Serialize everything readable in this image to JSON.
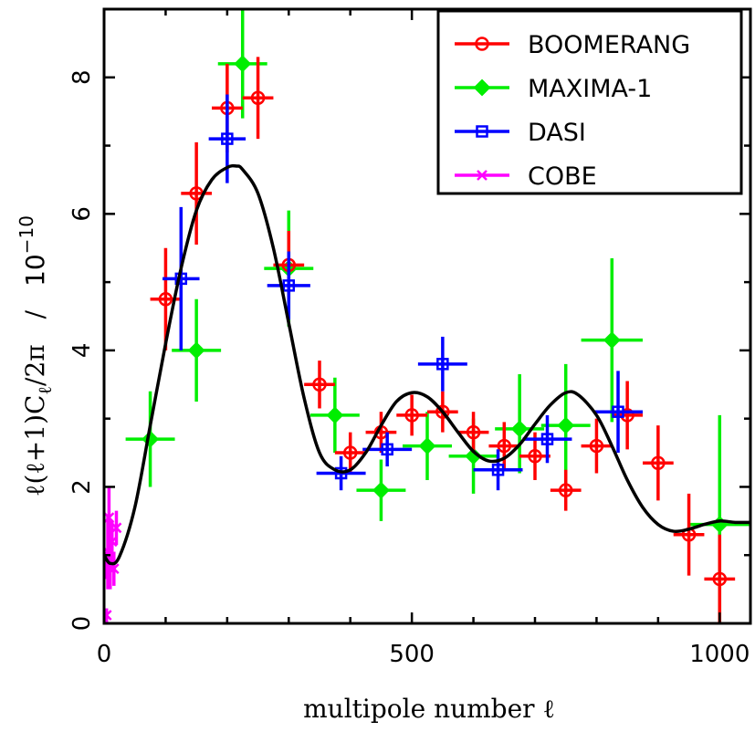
{
  "chart_data": {
    "type": "scatter",
    "xlabel": "multipole number ℓ",
    "ylabel": "ℓ(ℓ+1)C",
    "ylabel_sub": "ℓ",
    "ylabel_tail": "/2π",
    "ylabel_slash": "/",
    "ylabel_scale": "10",
    "ylabel_scale_exp": "−10",
    "xlim": [
      0,
      1050
    ],
    "ylim": [
      0,
      9
    ],
    "xticks": [
      0,
      500,
      1000
    ],
    "xtick_labels": [
      "0",
      "500",
      "1000"
    ],
    "yticks": [
      0,
      2,
      4,
      6,
      8
    ],
    "ytick_labels": [
      "0",
      "2",
      "4",
      "6",
      "8"
    ],
    "legend_position": "top-right",
    "series": [
      {
        "name": "BOOMERANG",
        "color": "#ff0000",
        "marker": "circle",
        "points": [
          {
            "x": 100,
            "y": 4.75,
            "xerr": 25,
            "yerr_lo": 0.75,
            "yerr_hi": 0.75
          },
          {
            "x": 150,
            "y": 6.3,
            "xerr": 25,
            "yerr_lo": 0.75,
            "yerr_hi": 0.75
          },
          {
            "x": 200,
            "y": 7.55,
            "xerr": 25,
            "yerr_lo": 0.65,
            "yerr_hi": 0.65
          },
          {
            "x": 250,
            "y": 7.7,
            "xerr": 25,
            "yerr_lo": 0.6,
            "yerr_hi": 0.6
          },
          {
            "x": 300,
            "y": 5.25,
            "xerr": 25,
            "yerr_lo": 0.5,
            "yerr_hi": 0.5
          },
          {
            "x": 350,
            "y": 3.5,
            "xerr": 25,
            "yerr_lo": 0.35,
            "yerr_hi": 0.35
          },
          {
            "x": 400,
            "y": 2.5,
            "xerr": 25,
            "yerr_lo": 0.3,
            "yerr_hi": 0.3
          },
          {
            "x": 450,
            "y": 2.8,
            "xerr": 25,
            "yerr_lo": 0.3,
            "yerr_hi": 0.3
          },
          {
            "x": 500,
            "y": 3.05,
            "xerr": 25,
            "yerr_lo": 0.3,
            "yerr_hi": 0.3
          },
          {
            "x": 550,
            "y": 3.1,
            "xerr": 25,
            "yerr_lo": 0.3,
            "yerr_hi": 0.3
          },
          {
            "x": 600,
            "y": 2.8,
            "xerr": 25,
            "yerr_lo": 0.3,
            "yerr_hi": 0.3
          },
          {
            "x": 650,
            "y": 2.6,
            "xerr": 25,
            "yerr_lo": 0.35,
            "yerr_hi": 0.35
          },
          {
            "x": 700,
            "y": 2.45,
            "xerr": 25,
            "yerr_lo": 0.35,
            "yerr_hi": 0.35
          },
          {
            "x": 750,
            "y": 1.95,
            "xerr": 25,
            "yerr_lo": 0.3,
            "yerr_hi": 0.3
          },
          {
            "x": 800,
            "y": 2.6,
            "xerr": 25,
            "yerr_lo": 0.4,
            "yerr_hi": 0.4
          },
          {
            "x": 850,
            "y": 3.05,
            "xerr": 25,
            "yerr_lo": 0.5,
            "yerr_hi": 0.5
          },
          {
            "x": 900,
            "y": 2.35,
            "xerr": 25,
            "yerr_lo": 0.55,
            "yerr_hi": 0.55
          },
          {
            "x": 950,
            "y": 1.3,
            "xerr": 25,
            "yerr_lo": 0.6,
            "yerr_hi": 0.6
          },
          {
            "x": 1000,
            "y": 0.65,
            "xerr": 25,
            "yerr_lo": 0.65,
            "yerr_hi": 0.65
          }
        ]
      },
      {
        "name": "MAXIMA-1",
        "color": "#00ee00",
        "marker": "diamond",
        "points": [
          {
            "x": 75,
            "y": 2.7,
            "xerr": 40,
            "yerr_lo": 0.7,
            "yerr_hi": 0.7
          },
          {
            "x": 150,
            "y": 4.0,
            "xerr": 40,
            "yerr_lo": 0.75,
            "yerr_hi": 0.75
          },
          {
            "x": 225,
            "y": 8.2,
            "xerr": 40,
            "yerr_lo": 0.8,
            "yerr_hi": 0.8
          },
          {
            "x": 300,
            "y": 5.2,
            "xerr": 40,
            "yerr_lo": 0.85,
            "yerr_hi": 0.85
          },
          {
            "x": 375,
            "y": 3.05,
            "xerr": 40,
            "yerr_lo": 0.55,
            "yerr_hi": 0.55
          },
          {
            "x": 450,
            "y": 1.95,
            "xerr": 40,
            "yerr_lo": 0.45,
            "yerr_hi": 0.45
          },
          {
            "x": 525,
            "y": 2.6,
            "xerr": 40,
            "yerr_lo": 0.5,
            "yerr_hi": 0.5
          },
          {
            "x": 600,
            "y": 2.45,
            "xerr": 40,
            "yerr_lo": 0.55,
            "yerr_hi": 0.55
          },
          {
            "x": 675,
            "y": 2.85,
            "xerr": 40,
            "yerr_lo": 0.65,
            "yerr_hi": 0.8
          },
          {
            "x": 750,
            "y": 2.9,
            "xerr": 40,
            "yerr_lo": 0.9,
            "yerr_hi": 0.9
          },
          {
            "x": 825,
            "y": 4.15,
            "xerr": 50,
            "yerr_lo": 1.2,
            "yerr_hi": 1.2
          },
          {
            "x": 1000,
            "y": 1.45,
            "xerr": 50,
            "yerr_lo": 1.6,
            "yerr_hi": 1.6
          }
        ]
      },
      {
        "name": "DASI",
        "color": "#0000ff",
        "marker": "square",
        "points": [
          {
            "x": 125,
            "y": 5.05,
            "xerr": 30,
            "yerr_lo": 1.05,
            "yerr_hi": 1.05
          },
          {
            "x": 200,
            "y": 7.1,
            "xerr": 30,
            "yerr_lo": 0.65,
            "yerr_hi": 0.65
          },
          {
            "x": 300,
            "y": 4.95,
            "xerr": 35,
            "yerr_lo": 0.5,
            "yerr_hi": 0.5
          },
          {
            "x": 385,
            "y": 2.2,
            "xerr": 40,
            "yerr_lo": 0.25,
            "yerr_hi": 0.25
          },
          {
            "x": 460,
            "y": 2.55,
            "xerr": 40,
            "yerr_lo": 0.25,
            "yerr_hi": 0.25
          },
          {
            "x": 550,
            "y": 3.8,
            "xerr": 40,
            "yerr_lo": 0.4,
            "yerr_hi": 0.4
          },
          {
            "x": 640,
            "y": 2.25,
            "xerr": 40,
            "yerr_lo": 0.3,
            "yerr_hi": 0.3
          },
          {
            "x": 720,
            "y": 2.7,
            "xerr": 40,
            "yerr_lo": 0.35,
            "yerr_hi": 0.35
          },
          {
            "x": 835,
            "y": 3.1,
            "xerr": 40,
            "yerr_lo": 0.6,
            "yerr_hi": 0.6
          }
        ]
      },
      {
        "name": "COBE",
        "color": "#ff00ff",
        "marker": "cross",
        "points": [
          {
            "x": 4,
            "y": 0.12,
            "xerr": 0,
            "yerr_lo": 0.1,
            "yerr_hi": 0.1
          },
          {
            "x": 6,
            "y": 1.05,
            "xerr": 1,
            "yerr_lo": 0.55,
            "yerr_hi": 0.55
          },
          {
            "x": 8,
            "y": 1.55,
            "xerr": 1,
            "yerr_lo": 0.45,
            "yerr_hi": 0.45
          },
          {
            "x": 10,
            "y": 0.85,
            "xerr": 2,
            "yerr_lo": 0.35,
            "yerr_hi": 0.35
          },
          {
            "x": 13,
            "y": 1.2,
            "xerr": 2,
            "yerr_lo": 0.3,
            "yerr_hi": 0.3
          },
          {
            "x": 16,
            "y": 0.8,
            "xerr": 3,
            "yerr_lo": 0.25,
            "yerr_hi": 0.25
          },
          {
            "x": 20,
            "y": 1.4,
            "xerr": 3,
            "yerr_lo": 0.25,
            "yerr_hi": 0.25
          },
          {
            "x": 4,
            "y": 0.85,
            "xerr": 0,
            "yerr_lo": 0.2,
            "yerr_hi": 0.2
          }
        ]
      }
    ],
    "model_curve": {
      "color": "#000000",
      "points": [
        [
          0,
          1.0
        ],
        [
          10,
          0.88
        ],
        [
          25,
          0.98
        ],
        [
          50,
          1.7
        ],
        [
          75,
          2.9
        ],
        [
          100,
          4.1
        ],
        [
          125,
          5.2
        ],
        [
          150,
          6.05
        ],
        [
          175,
          6.5
        ],
        [
          200,
          6.68
        ],
        [
          215,
          6.7
        ],
        [
          225,
          6.65
        ],
        [
          250,
          6.3
        ],
        [
          275,
          5.5
        ],
        [
          300,
          4.4
        ],
        [
          325,
          3.3
        ],
        [
          350,
          2.5
        ],
        [
          375,
          2.25
        ],
        [
          400,
          2.25
        ],
        [
          425,
          2.5
        ],
        [
          450,
          2.9
        ],
        [
          475,
          3.25
        ],
        [
          500,
          3.38
        ],
        [
          525,
          3.32
        ],
        [
          550,
          3.1
        ],
        [
          575,
          2.8
        ],
        [
          600,
          2.52
        ],
        [
          625,
          2.38
        ],
        [
          650,
          2.42
        ],
        [
          675,
          2.62
        ],
        [
          700,
          2.92
        ],
        [
          725,
          3.2
        ],
        [
          750,
          3.38
        ],
        [
          770,
          3.35
        ],
        [
          800,
          3.05
        ],
        [
          825,
          2.6
        ],
        [
          850,
          2.1
        ],
        [
          875,
          1.7
        ],
        [
          900,
          1.45
        ],
        [
          925,
          1.35
        ],
        [
          950,
          1.38
        ],
        [
          975,
          1.45
        ],
        [
          1000,
          1.5
        ],
        [
          1025,
          1.48
        ],
        [
          1050,
          1.48
        ]
      ]
    }
  }
}
